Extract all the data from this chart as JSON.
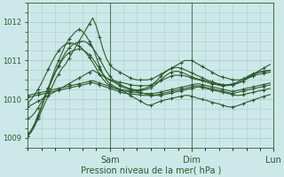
{
  "bg_color": "#cce8e8",
  "plot_bg": "#cce8e8",
  "grid_color": "#aacccc",
  "line_color": "#2d5a2d",
  "marker": "+",
  "markersize": 3,
  "linewidth": 0.8,
  "xlabel": "Pression niveau de la mer( hPa )",
  "ylim": [
    1008.75,
    1012.5
  ],
  "yticks": [
    1009,
    1010,
    1011,
    1012
  ],
  "xlim": [
    0,
    72
  ],
  "xtick_positions": [
    24,
    48,
    72
  ],
  "day_labels": [
    "Sam",
    "Dim",
    "Lun"
  ],
  "series": [
    [
      1009.05,
      1009.15,
      1009.3,
      1009.5,
      1009.7,
      1009.9,
      1010.1,
      1010.3,
      1010.5,
      1010.65,
      1010.8,
      1010.9,
      1011.05,
      1011.2,
      1011.35,
      1011.5,
      1011.65,
      1011.8,
      1011.95,
      1012.1,
      1011.9,
      1011.6,
      1011.3,
      1011.05,
      1010.9,
      1010.8,
      1010.75,
      1010.7,
      1010.65,
      1010.6,
      1010.55,
      1010.52,
      1010.5,
      1010.5,
      1010.5,
      1010.5,
      1010.52,
      1010.55,
      1010.6,
      1010.65,
      1010.7,
      1010.75,
      1010.8,
      1010.85,
      1010.9,
      1010.95,
      1011.0,
      1011.0,
      1011.0,
      1010.95,
      1010.9,
      1010.85,
      1010.8,
      1010.75,
      1010.7,
      1010.65,
      1010.6,
      1010.58,
      1010.55,
      1010.53,
      1010.5,
      1010.5,
      1010.5,
      1010.52,
      1010.55,
      1010.6,
      1010.65,
      1010.7,
      1010.75,
      1010.8,
      1010.85,
      1010.9
    ],
    [
      1009.8,
      1009.85,
      1009.9,
      1009.95,
      1010.0,
      1010.05,
      1010.1,
      1010.15,
      1010.2,
      1010.25,
      1010.3,
      1010.35,
      1010.4,
      1010.45,
      1010.5,
      1010.55,
      1010.6,
      1010.65,
      1010.7,
      1010.75,
      1010.7,
      1010.65,
      1010.6,
      1010.55,
      1010.5,
      1010.45,
      1010.4,
      1010.35,
      1010.3,
      1010.28,
      1010.25,
      1010.23,
      1010.2,
      1010.18,
      1010.15,
      1010.13,
      1010.1,
      1010.1,
      1010.1,
      1010.1,
      1010.12,
      1010.14,
      1010.16,
      1010.18,
      1010.2,
      1010.22,
      1010.24,
      1010.26,
      1010.28,
      1010.3,
      1010.32,
      1010.3,
      1010.28,
      1010.26,
      1010.24,
      1010.22,
      1010.2,
      1010.18,
      1010.16,
      1010.14,
      1010.12,
      1010.1,
      1010.1,
      1010.12,
      1010.14,
      1010.16,
      1010.18,
      1010.2,
      1010.22,
      1010.24,
      1010.26,
      1010.28
    ],
    [
      1010.05,
      1010.07,
      1010.09,
      1010.11,
      1010.13,
      1010.15,
      1010.17,
      1010.19,
      1010.21,
      1010.23,
      1010.25,
      1010.27,
      1010.29,
      1010.31,
      1010.33,
      1010.35,
      1010.37,
      1010.39,
      1010.41,
      1010.43,
      1010.4,
      1010.37,
      1010.34,
      1010.31,
      1010.28,
      1010.25,
      1010.22,
      1010.19,
      1010.16,
      1010.15,
      1010.14,
      1010.13,
      1010.12,
      1010.11,
      1010.1,
      1010.1,
      1010.1,
      1010.1,
      1010.12,
      1010.14,
      1010.16,
      1010.18,
      1010.2,
      1010.22,
      1010.24,
      1010.26,
      1010.28,
      1010.3,
      1010.32,
      1010.34,
      1010.35,
      1010.33,
      1010.31,
      1010.29,
      1010.27,
      1010.25,
      1010.23,
      1010.21,
      1010.19,
      1010.17,
      1010.15,
      1010.17,
      1010.19,
      1010.21,
      1010.23,
      1010.25,
      1010.27,
      1010.29,
      1010.31,
      1010.33,
      1010.35,
      1010.37
    ],
    [
      1010.1,
      1010.12,
      1010.14,
      1010.16,
      1010.18,
      1010.2,
      1010.22,
      1010.24,
      1010.26,
      1010.28,
      1010.3,
      1010.32,
      1010.34,
      1010.36,
      1010.38,
      1010.4,
      1010.42,
      1010.44,
      1010.46,
      1010.48,
      1010.45,
      1010.42,
      1010.39,
      1010.36,
      1010.33,
      1010.3,
      1010.27,
      1010.24,
      1010.21,
      1010.2,
      1010.19,
      1010.18,
      1010.17,
      1010.16,
      1010.15,
      1010.15,
      1010.15,
      1010.15,
      1010.17,
      1010.19,
      1010.21,
      1010.23,
      1010.25,
      1010.27,
      1010.29,
      1010.31,
      1010.33,
      1010.35,
      1010.37,
      1010.39,
      1010.4,
      1010.38,
      1010.36,
      1010.34,
      1010.32,
      1010.3,
      1010.28,
      1010.26,
      1010.24,
      1010.22,
      1010.2,
      1010.22,
      1010.24,
      1010.26,
      1010.28,
      1010.3,
      1010.32,
      1010.34,
      1010.36,
      1010.38,
      1010.4,
      1010.42
    ],
    [
      1009.1,
      1009.2,
      1009.35,
      1009.55,
      1009.8,
      1010.05,
      1010.3,
      1010.55,
      1010.8,
      1011.0,
      1011.2,
      1011.4,
      1011.55,
      1011.65,
      1011.75,
      1011.8,
      1011.75,
      1011.65,
      1011.5,
      1011.35,
      1011.1,
      1010.85,
      1010.65,
      1010.5,
      1010.4,
      1010.35,
      1010.3,
      1010.25,
      1010.2,
      1010.15,
      1010.1,
      1010.05,
      1010.0,
      1009.95,
      1009.9,
      1009.85,
      1009.85,
      1009.88,
      1009.92,
      1009.95,
      1009.98,
      1010.0,
      1010.02,
      1010.04,
      1010.06,
      1010.08,
      1010.1,
      1010.1,
      1010.08,
      1010.05,
      1010.02,
      1010.0,
      1009.98,
      1009.95,
      1009.92,
      1009.9,
      1009.88,
      1009.85,
      1009.82,
      1009.8,
      1009.8,
      1009.82,
      1009.85,
      1009.88,
      1009.92,
      1009.95,
      1009.98,
      1010.01,
      1010.04,
      1010.07,
      1010.1,
      1010.12
    ],
    [
      1009.5,
      1009.55,
      1009.65,
      1009.78,
      1009.93,
      1010.1,
      1010.28,
      1010.48,
      1010.68,
      1010.85,
      1011.0,
      1011.12,
      1011.2,
      1011.25,
      1011.28,
      1011.3,
      1011.28,
      1011.22,
      1011.15,
      1011.05,
      1010.92,
      1010.78,
      1010.65,
      1010.55,
      1010.5,
      1010.48,
      1010.46,
      1010.44,
      1010.42,
      1010.4,
      1010.38,
      1010.36,
      1010.35,
      1010.35,
      1010.35,
      1010.35,
      1010.37,
      1010.4,
      1010.44,
      1010.48,
      1010.52,
      1010.56,
      1010.6,
      1010.62,
      1010.62,
      1010.62,
      1010.6,
      1010.58,
      1010.55,
      1010.52,
      1010.5,
      1010.48,
      1010.45,
      1010.42,
      1010.4,
      1010.38,
      1010.36,
      1010.35,
      1010.35,
      1010.36,
      1010.38,
      1010.4,
      1010.43,
      1010.47,
      1010.52,
      1010.56,
      1010.6,
      1010.63,
      1010.65,
      1010.67,
      1010.68,
      1010.7
    ],
    [
      1009.9,
      1010.0,
      1010.12,
      1010.26,
      1010.42,
      1010.6,
      1010.78,
      1010.96,
      1011.12,
      1011.25,
      1011.35,
      1011.42,
      1011.45,
      1011.45,
      1011.42,
      1011.38,
      1011.3,
      1011.2,
      1011.08,
      1010.95,
      1010.8,
      1010.65,
      1010.52,
      1010.42,
      1010.35,
      1010.3,
      1010.27,
      1010.25,
      1010.24,
      1010.23,
      1010.22,
      1010.22,
      1010.22,
      1010.23,
      1010.24,
      1010.26,
      1010.3,
      1010.35,
      1010.42,
      1010.5,
      1010.58,
      1010.65,
      1010.7,
      1010.72,
      1010.72,
      1010.7,
      1010.66,
      1010.62,
      1010.58,
      1010.55,
      1010.52,
      1010.5,
      1010.48,
      1010.45,
      1010.42,
      1010.4,
      1010.38,
      1010.37,
      1010.37,
      1010.38,
      1010.4,
      1010.43,
      1010.47,
      1010.52,
      1010.57,
      1010.62,
      1010.66,
      1010.69,
      1010.71,
      1010.72,
      1010.73,
      1010.74
    ],
    [
      1009.05,
      1009.2,
      1009.38,
      1009.6,
      1009.82,
      1010.05,
      1010.28,
      1010.5,
      1010.7,
      1010.88,
      1011.05,
      1011.2,
      1011.32,
      1011.4,
      1011.45,
      1011.48,
      1011.5,
      1011.48,
      1011.42,
      1011.32,
      1011.2,
      1011.05,
      1010.88,
      1010.72,
      1010.6,
      1010.5,
      1010.43,
      1010.38,
      1010.34,
      1010.3,
      1010.27,
      1010.25,
      1010.24,
      1010.25,
      1010.27,
      1010.3,
      1010.35,
      1010.42,
      1010.5,
      1010.6,
      1010.68,
      1010.75,
      1010.8,
      1010.82,
      1010.82,
      1010.8,
      1010.76,
      1010.72,
      1010.68,
      1010.64,
      1010.6,
      1010.56,
      1010.52,
      1010.48,
      1010.45,
      1010.42,
      1010.4,
      1010.38,
      1010.37,
      1010.37,
      1010.38,
      1010.4,
      1010.43,
      1010.47,
      1010.52,
      1010.58,
      1010.63,
      1010.67,
      1010.7,
      1010.72,
      1010.74,
      1010.75
    ]
  ]
}
